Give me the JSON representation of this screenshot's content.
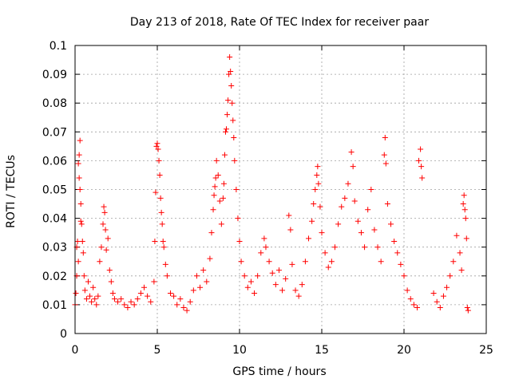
{
  "chart_data": {
    "type": "scatter",
    "title": "Day 213 of 2018, Rate Of TEC Index for receiver paar",
    "xlabel": "GPS time / hours",
    "ylabel": "ROTI / TECUs",
    "xlim": [
      0,
      25
    ],
    "ylim": [
      0,
      0.1
    ],
    "xticks": [
      "0",
      "5",
      "10",
      "15",
      "20",
      "25"
    ],
    "yticks": [
      "0",
      "0.01",
      "0.02",
      "0.03",
      "0.04",
      "0.05",
      "0.06",
      "0.07",
      "0.08",
      "0.09",
      "0.1"
    ],
    "grid": true,
    "marker": "+",
    "color": "#ff0000",
    "series": [
      {
        "points": [
          [
            0.0,
            0.01
          ],
          [
            0.05,
            0.014
          ],
          [
            0.1,
            0.02
          ],
          [
            0.1,
            0.03
          ],
          [
            0.15,
            0.032
          ],
          [
            0.2,
            0.025
          ],
          [
            0.2,
            0.059
          ],
          [
            0.25,
            0.062
          ],
          [
            0.25,
            0.054
          ],
          [
            0.3,
            0.067
          ],
          [
            0.3,
            0.05
          ],
          [
            0.35,
            0.045
          ],
          [
            0.35,
            0.039
          ],
          [
            0.4,
            0.038
          ],
          [
            0.45,
            0.032
          ],
          [
            0.5,
            0.028
          ],
          [
            0.55,
            0.02
          ],
          [
            0.6,
            0.015
          ],
          [
            0.7,
            0.012
          ],
          [
            0.8,
            0.018
          ],
          [
            0.9,
            0.013
          ],
          [
            1.0,
            0.011
          ],
          [
            1.1,
            0.016
          ],
          [
            1.2,
            0.012
          ],
          [
            1.3,
            0.01
          ],
          [
            1.4,
            0.013
          ],
          [
            1.5,
            0.025
          ],
          [
            1.6,
            0.03
          ],
          [
            1.7,
            0.038
          ],
          [
            1.75,
            0.044
          ],
          [
            1.8,
            0.042
          ],
          [
            1.85,
            0.036
          ],
          [
            1.9,
            0.029
          ],
          [
            2.0,
            0.033
          ],
          [
            2.1,
            0.022
          ],
          [
            2.2,
            0.018
          ],
          [
            2.3,
            0.014
          ],
          [
            2.4,
            0.012
          ],
          [
            2.6,
            0.011
          ],
          [
            2.8,
            0.012
          ],
          [
            3.0,
            0.01
          ],
          [
            3.2,
            0.009
          ],
          [
            3.4,
            0.011
          ],
          [
            3.6,
            0.01
          ],
          [
            3.8,
            0.012
          ],
          [
            4.0,
            0.014
          ],
          [
            4.2,
            0.016
          ],
          [
            4.4,
            0.013
          ],
          [
            4.6,
            0.011
          ],
          [
            4.8,
            0.018
          ],
          [
            4.85,
            0.032
          ],
          [
            4.9,
            0.049
          ],
          [
            4.95,
            0.065
          ],
          [
            5.0,
            0.066
          ],
          [
            5.05,
            0.064
          ],
          [
            5.1,
            0.06
          ],
          [
            5.15,
            0.055
          ],
          [
            5.2,
            0.047
          ],
          [
            5.25,
            0.042
          ],
          [
            5.3,
            0.038
          ],
          [
            5.35,
            0.032
          ],
          [
            5.4,
            0.03
          ],
          [
            5.5,
            0.024
          ],
          [
            5.6,
            0.02
          ],
          [
            5.8,
            0.014
          ],
          [
            6.0,
            0.013
          ],
          [
            6.2,
            0.01
          ],
          [
            6.4,
            0.012
          ],
          [
            6.6,
            0.009
          ],
          [
            6.8,
            0.008
          ],
          [
            7.0,
            0.011
          ],
          [
            7.2,
            0.015
          ],
          [
            7.4,
            0.02
          ],
          [
            7.6,
            0.016
          ],
          [
            7.8,
            0.022
          ],
          [
            8.0,
            0.018
          ],
          [
            8.2,
            0.026
          ],
          [
            8.3,
            0.035
          ],
          [
            8.4,
            0.043
          ],
          [
            8.45,
            0.048
          ],
          [
            8.5,
            0.051
          ],
          [
            8.55,
            0.054
          ],
          [
            8.6,
            0.06
          ],
          [
            8.7,
            0.055
          ],
          [
            8.8,
            0.046
          ],
          [
            8.9,
            0.038
          ],
          [
            9.0,
            0.047
          ],
          [
            9.05,
            0.052
          ],
          [
            9.1,
            0.062
          ],
          [
            9.15,
            0.07
          ],
          [
            9.2,
            0.071
          ],
          [
            9.25,
            0.076
          ],
          [
            9.3,
            0.081
          ],
          [
            9.35,
            0.09
          ],
          [
            9.4,
            0.096
          ],
          [
            9.45,
            0.091
          ],
          [
            9.5,
            0.086
          ],
          [
            9.55,
            0.08
          ],
          [
            9.6,
            0.074
          ],
          [
            9.65,
            0.068
          ],
          [
            9.7,
            0.06
          ],
          [
            9.8,
            0.05
          ],
          [
            9.9,
            0.04
          ],
          [
            10.0,
            0.032
          ],
          [
            10.1,
            0.025
          ],
          [
            10.3,
            0.02
          ],
          [
            10.5,
            0.016
          ],
          [
            10.7,
            0.018
          ],
          [
            10.9,
            0.014
          ],
          [
            11.1,
            0.02
          ],
          [
            11.3,
            0.028
          ],
          [
            11.5,
            0.033
          ],
          [
            11.6,
            0.03
          ],
          [
            11.8,
            0.025
          ],
          [
            12.0,
            0.021
          ],
          [
            12.2,
            0.017
          ],
          [
            12.4,
            0.022
          ],
          [
            12.6,
            0.015
          ],
          [
            12.8,
            0.019
          ],
          [
            13.0,
            0.041
          ],
          [
            13.1,
            0.036
          ],
          [
            13.2,
            0.024
          ],
          [
            13.4,
            0.015
          ],
          [
            13.6,
            0.013
          ],
          [
            13.8,
            0.017
          ],
          [
            14.0,
            0.025
          ],
          [
            14.2,
            0.033
          ],
          [
            14.4,
            0.039
          ],
          [
            14.5,
            0.045
          ],
          [
            14.6,
            0.05
          ],
          [
            14.7,
            0.055
          ],
          [
            14.75,
            0.058
          ],
          [
            14.8,
            0.052
          ],
          [
            14.9,
            0.044
          ],
          [
            15.0,
            0.035
          ],
          [
            15.2,
            0.028
          ],
          [
            15.4,
            0.023
          ],
          [
            15.6,
            0.025
          ],
          [
            15.8,
            0.03
          ],
          [
            16.0,
            0.038
          ],
          [
            16.2,
            0.044
          ],
          [
            16.4,
            0.047
          ],
          [
            16.6,
            0.052
          ],
          [
            16.8,
            0.063
          ],
          [
            16.9,
            0.058
          ],
          [
            17.0,
            0.046
          ],
          [
            17.2,
            0.039
          ],
          [
            17.4,
            0.035
          ],
          [
            17.6,
            0.03
          ],
          [
            17.8,
            0.043
          ],
          [
            18.0,
            0.05
          ],
          [
            18.2,
            0.036
          ],
          [
            18.4,
            0.03
          ],
          [
            18.6,
            0.025
          ],
          [
            18.8,
            0.062
          ],
          [
            18.85,
            0.068
          ],
          [
            18.9,
            0.059
          ],
          [
            19.0,
            0.045
          ],
          [
            19.2,
            0.038
          ],
          [
            19.4,
            0.032
          ],
          [
            19.6,
            0.028
          ],
          [
            19.8,
            0.024
          ],
          [
            20.0,
            0.02
          ],
          [
            20.2,
            0.015
          ],
          [
            20.4,
            0.012
          ],
          [
            20.6,
            0.01
          ],
          [
            20.8,
            0.009
          ],
          [
            20.9,
            0.06
          ],
          [
            21.0,
            0.064
          ],
          [
            21.05,
            0.058
          ],
          [
            21.1,
            0.054
          ],
          [
            21.8,
            0.014
          ],
          [
            22.0,
            0.011
          ],
          [
            22.2,
            0.009
          ],
          [
            22.4,
            0.013
          ],
          [
            22.6,
            0.016
          ],
          [
            22.8,
            0.02
          ],
          [
            23.0,
            0.025
          ],
          [
            23.2,
            0.034
          ],
          [
            23.4,
            0.028
          ],
          [
            23.5,
            0.022
          ],
          [
            23.6,
            0.045
          ],
          [
            23.65,
            0.048
          ],
          [
            23.7,
            0.043
          ],
          [
            23.75,
            0.04
          ],
          [
            23.8,
            0.033
          ],
          [
            23.85,
            0.009
          ],
          [
            23.9,
            0.008
          ]
        ]
      }
    ]
  }
}
